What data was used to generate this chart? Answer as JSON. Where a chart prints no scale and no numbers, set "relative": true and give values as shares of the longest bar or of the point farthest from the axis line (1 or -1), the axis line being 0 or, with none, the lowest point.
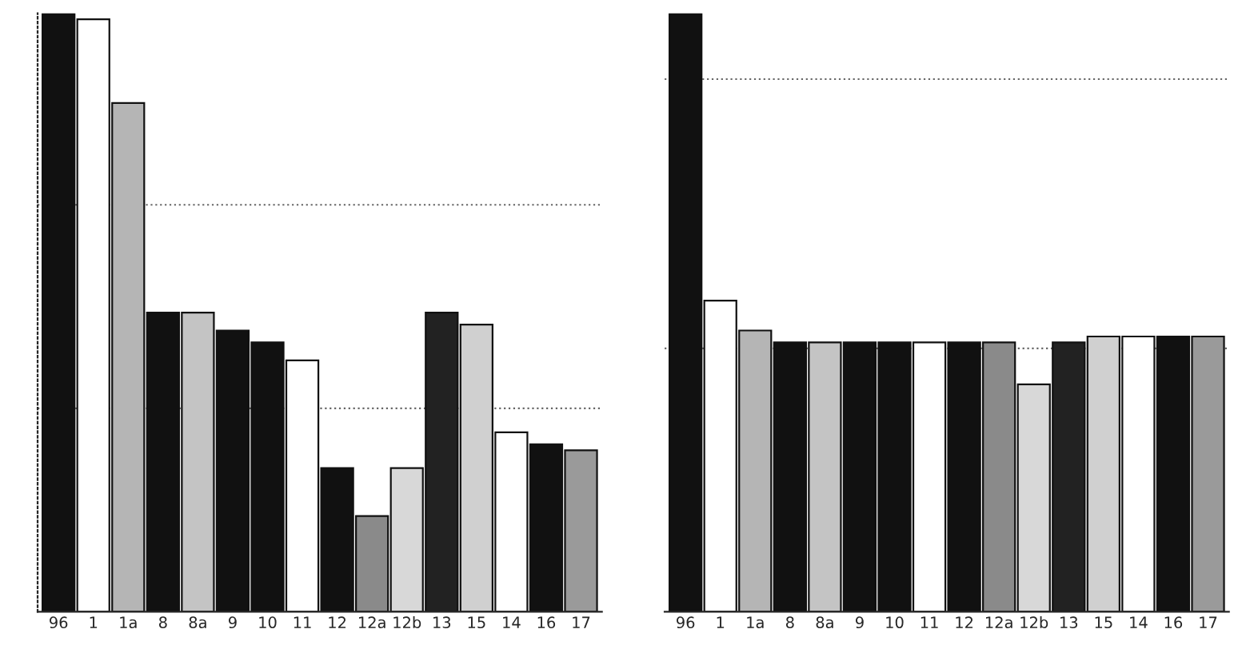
{
  "chart_data": [
    {
      "type": "bar",
      "relative": true,
      "ref_lines": [
        {
          "axis": "y",
          "value": 0.68,
          "line_style": "dotted"
        },
        {
          "axis": "y",
          "value": 0.34,
          "line_style": "dotted"
        }
      ],
      "categories": [
        "96",
        "1",
        "1a",
        "8",
        "8a",
        "9",
        "10",
        "11",
        "12",
        "12a",
        "12b",
        "13",
        "15",
        "14",
        "16",
        "17"
      ],
      "values": [
        1.0,
        0.99,
        0.85,
        0.5,
        0.5,
        0.47,
        0.45,
        0.42,
        0.24,
        0.16,
        0.24,
        0.5,
        0.48,
        0.3,
        0.28,
        0.27
      ],
      "colors": [
        "#111111",
        "#ffffff",
        "#b5b5b5",
        "#111111",
        "#c4c4c4",
        "#111111",
        "#111111",
        "#ffffff",
        "#111111",
        "#8a8a8a",
        "#d8d8d8",
        "#222222",
        "#d0d0d0",
        "#ffffff",
        "#111111",
        "#9a9a9a"
      ]
    },
    {
      "type": "bar",
      "relative": true,
      "ref_lines": [
        {
          "axis": "y",
          "value": 0.89,
          "line_style": "dotted"
        },
        {
          "axis": "y",
          "value": 0.44,
          "line_style": "dotted"
        }
      ],
      "categories": [
        "96",
        "1",
        "1a",
        "8",
        "8a",
        "9",
        "10",
        "11",
        "12",
        "12a",
        "12b",
        "13",
        "15",
        "14",
        "16",
        "17"
      ],
      "values": [
        1.0,
        0.52,
        0.47,
        0.45,
        0.45,
        0.45,
        0.45,
        0.45,
        0.45,
        0.45,
        0.38,
        0.45,
        0.46,
        0.46,
        0.46,
        0.46
      ],
      "colors": [
        "#111111",
        "#ffffff",
        "#b5b5b5",
        "#111111",
        "#c4c4c4",
        "#111111",
        "#111111",
        "#ffffff",
        "#111111",
        "#8a8a8a",
        "#d8d8d8",
        "#222222",
        "#d0d0d0",
        "#ffffff",
        "#111111",
        "#9a9a9a"
      ]
    }
  ]
}
